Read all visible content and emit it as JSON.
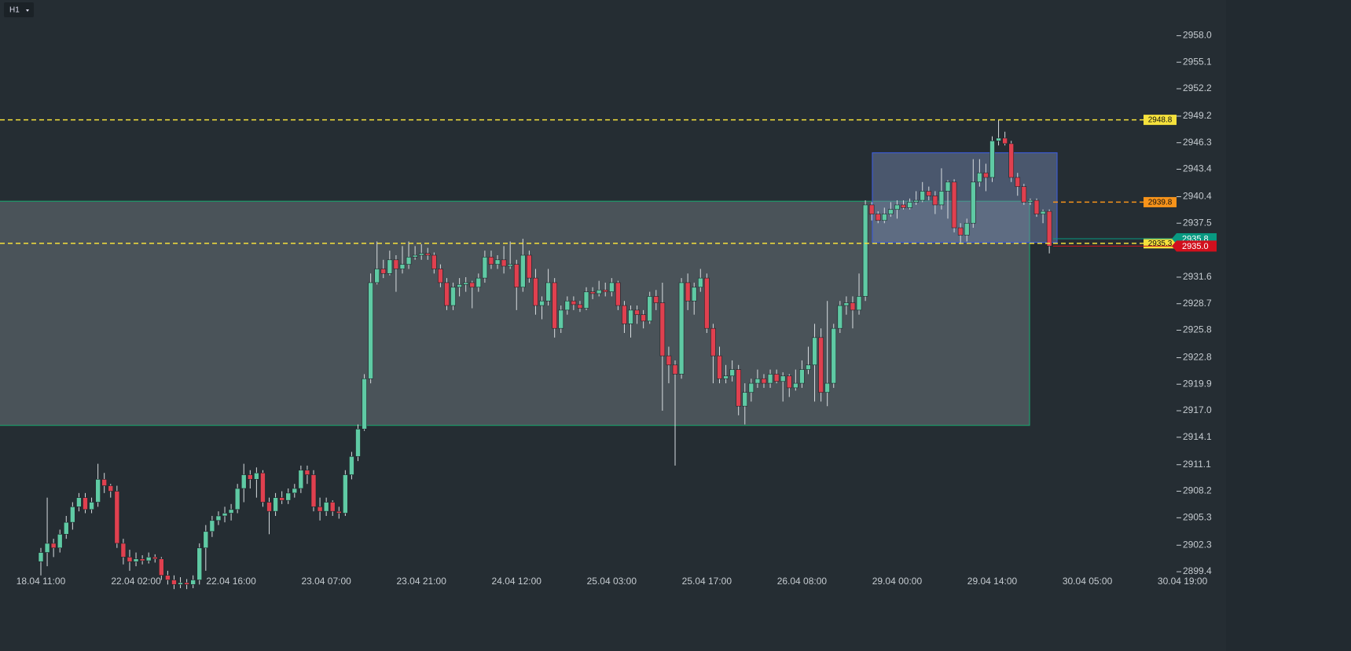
{
  "chart_data": {
    "type": "candlestick",
    "timeframe": "H1",
    "ylim": [
      2897.3,
      2961.9
    ],
    "yticks": [
      {
        "value": 2958.0,
        "label": "2958.0"
      },
      {
        "value": 2955.1,
        "label": "2955.1"
      },
      {
        "value": 2952.2,
        "label": "2952.2"
      },
      {
        "value": 2949.2,
        "label": "2949.2"
      },
      {
        "value": 2946.3,
        "label": "2946.3"
      },
      {
        "value": 2943.4,
        "label": "2943.4"
      },
      {
        "value": 2940.4,
        "label": "2940.4"
      },
      {
        "value": 2937.5,
        "label": "2937.5"
      },
      {
        "value": 2931.6,
        "label": "2931.6"
      },
      {
        "value": 2928.7,
        "label": "2928.7"
      },
      {
        "value": 2925.8,
        "label": "2925.8"
      },
      {
        "value": 2922.8,
        "label": "2922.8"
      },
      {
        "value": 2919.9,
        "label": "2919.9"
      },
      {
        "value": 2917.0,
        "label": "2917.0"
      },
      {
        "value": 2914.1,
        "label": "2914.1"
      },
      {
        "value": 2911.1,
        "label": "2911.1"
      },
      {
        "value": 2908.2,
        "label": "2908.2"
      },
      {
        "value": 2905.3,
        "label": "2905.3"
      },
      {
        "value": 2902.3,
        "label": "2902.3"
      },
      {
        "value": 2899.4,
        "label": "2899.4"
      }
    ],
    "xticks": [
      "18.04 11:00",
      "22.04 02:00",
      "22.04 16:00",
      "23.04 07:00",
      "23.04 21:00",
      "24.04 12:00",
      "25.04 03:00",
      "25.04 17:00",
      "26.04 08:00",
      "29.04 00:00",
      "29.04 14:00",
      "30.04 05:00",
      "30.04 19:00"
    ],
    "up_color": "#5fcaa4",
    "down_color": "#e0404f",
    "zones": [
      {
        "top": 2939.9,
        "bottom": 2915.4,
        "fill": "rgba(120,130,135,0.45)",
        "stroke": "#1f9a6a"
      },
      {
        "top": 2945.2,
        "bottom": 2935.4,
        "fill": "rgba(120,140,180,0.45)",
        "stroke": "#3d5bd0"
      }
    ],
    "levels": [
      {
        "price": 2948.8,
        "color": "#f5e13c",
        "dashed": true
      },
      {
        "price": 2939.8,
        "color": "#f7931a",
        "dashed": true
      },
      {
        "price": 2935.3,
        "color": "#f5e13c",
        "dashed": true
      },
      {
        "price": 2935.8,
        "color": "#089981",
        "dashed": false
      },
      {
        "price": {
          "value": 2935,
          "label": "2935.0"
        },
        "color": "#d1101d",
        "dashed": false
      }
    ],
    "candles": [
      [
        2900.5,
        2902.0,
        2899.0,
        2901.5
      ],
      [
        2901.5,
        2907.5,
        2900.0,
        2902.5
      ],
      [
        2902.5,
        2903.0,
        2901.0,
        2902.0
      ],
      [
        2902.0,
        2904.0,
        2901.5,
        2903.5
      ],
      [
        2903.5,
        2905.5,
        2903.0,
        2904.8
      ],
      [
        2904.8,
        2907.0,
        2904.0,
        2906.5
      ],
      [
        2906.5,
        2908.0,
        2906.0,
        2907.5
      ],
      [
        2907.5,
        2908.0,
        2905.8,
        2906.2
      ],
      [
        2906.2,
        2907.5,
        2905.8,
        2907.0
      ],
      [
        2907.0,
        2911.2,
        2906.5,
        2909.5
      ],
      [
        2909.5,
        2910.2,
        2908.0,
        2908.8
      ],
      [
        2908.8,
        2909.0,
        2907.5,
        2908.2
      ],
      [
        2908.2,
        2908.8,
        2902.0,
        2902.5
      ],
      [
        2902.5,
        2903.0,
        2900.2,
        2901.0
      ],
      [
        2901.0,
        2901.8,
        2899.5,
        2900.5
      ],
      [
        2900.5,
        2901.5,
        2900.0,
        2900.8
      ],
      [
        2900.8,
        2901.2,
        2900.2,
        2900.6
      ],
      [
        2900.6,
        2901.5,
        2900.3,
        2901.0
      ],
      [
        2901.0,
        2901.3,
        2900.4,
        2900.8
      ],
      [
        2900.8,
        2901.0,
        2898.5,
        2899.0
      ],
      [
        2899.0,
        2899.5,
        2898.0,
        2898.5
      ],
      [
        2898.5,
        2899.0,
        2897.5,
        2898.0
      ],
      [
        2898.0,
        2898.8,
        2897.6,
        2898.2
      ],
      [
        2898.2,
        2898.6,
        2897.5,
        2898.0
      ],
      [
        2898.0,
        2899.0,
        2897.6,
        2898.5
      ],
      [
        2898.5,
        2902.5,
        2898.0,
        2902.0
      ],
      [
        2902.0,
        2904.5,
        2899.5,
        2903.8
      ],
      [
        2903.8,
        2905.5,
        2903.2,
        2905.0
      ],
      [
        2905.0,
        2906.0,
        2904.5,
        2905.5
      ],
      [
        2905.5,
        2906.5,
        2904.8,
        2905.8
      ],
      [
        2905.8,
        2906.8,
        2905.0,
        2906.2
      ],
      [
        2906.2,
        2909.0,
        2905.8,
        2908.5
      ],
      [
        2908.5,
        2911.2,
        2907.0,
        2910.0
      ],
      [
        2910.0,
        2910.5,
        2908.5,
        2909.5
      ],
      [
        2909.5,
        2910.8,
        2907.5,
        2910.2
      ],
      [
        2910.2,
        2910.5,
        2906.5,
        2907.0
      ],
      [
        2907.0,
        2907.5,
        2903.5,
        2906.0
      ],
      [
        2906.0,
        2908.0,
        2905.5,
        2907.5
      ],
      [
        2907.5,
        2908.2,
        2906.8,
        2907.2
      ],
      [
        2907.2,
        2908.5,
        2906.8,
        2908.0
      ],
      [
        2908.0,
        2909.0,
        2907.5,
        2908.5
      ],
      [
        2908.5,
        2911.0,
        2908.0,
        2910.5
      ],
      [
        2910.5,
        2911.0,
        2909.0,
        2910.0
      ],
      [
        2910.0,
        2910.5,
        2906.0,
        2906.5
      ],
      [
        2906.5,
        2907.5,
        2905.0,
        2906.0
      ],
      [
        2906.0,
        2907.5,
        2905.5,
        2907.0
      ],
      [
        2907.0,
        2907.2,
        2905.5,
        2906.0
      ],
      [
        2906.0,
        2906.5,
        2905.2,
        2905.8
      ],
      [
        2905.8,
        2910.5,
        2905.5,
        2910.0
      ],
      [
        2910.0,
        2912.5,
        2909.5,
        2912.0
      ],
      [
        2912.0,
        2915.5,
        2911.5,
        2915.0
      ],
      [
        2915.0,
        2921.0,
        2914.8,
        2920.5
      ],
      [
        2920.5,
        2932.0,
        2920.0,
        2931.0
      ],
      [
        2931.0,
        2935.5,
        2930.8,
        2932.5
      ],
      [
        2932.5,
        2933.5,
        2931.5,
        2932.0
      ],
      [
        2932.0,
        2934.5,
        2931.8,
        2933.5
      ],
      [
        2933.5,
        2934.0,
        2930.0,
        2932.5
      ],
      [
        2932.5,
        2935.0,
        2932.0,
        2933.0
      ],
      [
        2933.0,
        2935.5,
        2932.5,
        2933.8
      ],
      [
        2933.8,
        2935.0,
        2933.5,
        2934.0
      ],
      [
        2934.0,
        2935.2,
        2933.5,
        2934.2
      ],
      [
        2934.2,
        2934.8,
        2933.5,
        2934.0
      ],
      [
        2934.0,
        2934.3,
        2932.0,
        2932.5
      ],
      [
        2932.5,
        2933.0,
        2930.5,
        2931.0
      ],
      [
        2931.0,
        2931.5,
        2928.0,
        2928.5
      ],
      [
        2928.5,
        2931.0,
        2928.0,
        2930.5
      ],
      [
        2930.5,
        2931.5,
        2929.5,
        2930.8
      ],
      [
        2930.8,
        2931.6,
        2930.0,
        2931.0
      ],
      [
        2931.0,
        2931.2,
        2928.2,
        2930.5
      ],
      [
        2930.5,
        2932.0,
        2930.0,
        2931.5
      ],
      [
        2931.5,
        2934.5,
        2931.0,
        2933.8
      ],
      [
        2933.8,
        2934.5,
        2932.5,
        2933.0
      ],
      [
        2933.0,
        2934.0,
        2932.5,
        2933.5
      ],
      [
        2933.5,
        2935.0,
        2932.0,
        2932.8
      ],
      [
        2932.8,
        2935.5,
        2932.5,
        2933.0
      ],
      [
        2933.0,
        2933.5,
        2928.0,
        2930.5
      ],
      [
        2930.5,
        2935.8,
        2930.0,
        2934.0
      ],
      [
        2934.0,
        2934.5,
        2931.0,
        2931.5
      ],
      [
        2931.5,
        2932.5,
        2927.5,
        2928.5
      ],
      [
        2928.5,
        2929.5,
        2927.0,
        2929.0
      ],
      [
        2929.0,
        2932.5,
        2928.5,
        2931.0
      ],
      [
        2931.0,
        2931.5,
        2925.0,
        2926.0
      ],
      [
        2926.0,
        2928.5,
        2925.5,
        2928.0
      ],
      [
        2928.0,
        2929.5,
        2927.5,
        2929.0
      ],
      [
        2929.0,
        2929.5,
        2928.0,
        2928.6
      ],
      [
        2928.6,
        2929.0,
        2927.8,
        2928.2
      ],
      [
        2928.2,
        2930.5,
        2928.0,
        2930.0
      ],
      [
        2930.0,
        2930.5,
        2929.2,
        2929.8
      ],
      [
        2929.8,
        2931.2,
        2929.5,
        2930.2
      ],
      [
        2930.2,
        2931.0,
        2929.5,
        2930.0
      ],
      [
        2930.0,
        2931.5,
        2929.5,
        2931.0
      ],
      [
        2931.0,
        2931.2,
        2928.0,
        2928.5
      ],
      [
        2928.5,
        2929.0,
        2925.5,
        2926.5
      ],
      [
        2926.5,
        2928.5,
        2925.0,
        2928.0
      ],
      [
        2928.0,
        2928.5,
        2926.5,
        2927.5
      ],
      [
        2927.5,
        2928.0,
        2926.0,
        2926.8
      ],
      [
        2926.8,
        2930.0,
        2926.5,
        2929.5
      ],
      [
        2929.5,
        2930.2,
        2928.0,
        2928.8
      ],
      [
        2928.8,
        2931.0,
        2917.0,
        2923.0
      ],
      [
        2923.0,
        2924.0,
        2920.0,
        2922.0
      ],
      [
        2922.0,
        2922.5,
        2911.0,
        2921.0
      ],
      [
        2921.0,
        2931.5,
        2920.5,
        2931.0
      ],
      [
        2931.0,
        2932.0,
        2928.0,
        2929.0
      ],
      [
        2929.0,
        2931.0,
        2927.5,
        2930.5
      ],
      [
        2930.5,
        2932.5,
        2930.0,
        2931.5
      ],
      [
        2931.5,
        2932.0,
        2925.5,
        2926.0
      ],
      [
        2926.0,
        2926.5,
        2920.0,
        2923.0
      ],
      [
        2923.0,
        2924.0,
        2920.0,
        2920.5
      ],
      [
        2920.5,
        2922.0,
        2920.0,
        2920.8
      ],
      [
        2920.8,
        2922.5,
        2920.2,
        2921.5
      ],
      [
        2921.5,
        2922.0,
        2916.5,
        2917.5
      ],
      [
        2917.5,
        2920.0,
        2915.5,
        2919.0
      ],
      [
        2919.0,
        2920.5,
        2918.0,
        2920.0
      ],
      [
        2920.0,
        2921.5,
        2919.5,
        2920.5
      ],
      [
        2920.5,
        2921.0,
        2919.5,
        2920.0
      ],
      [
        2920.0,
        2921.5,
        2919.5,
        2921.0
      ],
      [
        2921.0,
        2921.5,
        2920.0,
        2920.2
      ],
      [
        2920.2,
        2921.2,
        2918.0,
        2920.8
      ],
      [
        2920.8,
        2921.0,
        2918.5,
        2919.5
      ],
      [
        2919.5,
        2921.5,
        2919.2,
        2920.0
      ],
      [
        2920.0,
        2922.5,
        2919.5,
        2921.5
      ],
      [
        2921.5,
        2924.0,
        2921.0,
        2922.0
      ],
      [
        2922.0,
        2926.5,
        2918.0,
        2925.0
      ],
      [
        2925.0,
        2926.0,
        2918.0,
        2919.0
      ],
      [
        2919.0,
        2929.0,
        2917.5,
        2920.0
      ],
      [
        2920.0,
        2926.5,
        2919.5,
        2926.0
      ],
      [
        2926.0,
        2929.0,
        2925.5,
        2928.5
      ],
      [
        2928.5,
        2929.5,
        2927.5,
        2928.8
      ],
      [
        2928.8,
        2929.5,
        2926.0,
        2928.0
      ],
      [
        2928.0,
        2932.0,
        2927.5,
        2929.5
      ],
      [
        2929.5,
        2940.0,
        2929.0,
        2939.5
      ],
      [
        2939.5,
        2939.8,
        2937.8,
        2938.5
      ],
      [
        2938.5,
        2938.8,
        2937.5,
        2937.8
      ],
      [
        2937.8,
        2939.2,
        2937.5,
        2938.5
      ],
      [
        2938.5,
        2939.8,
        2938.2,
        2939.0
      ],
      [
        2939.0,
        2940.0,
        2938.0,
        2939.5
      ],
      [
        2939.5,
        2940.0,
        2939.0,
        2939.2
      ],
      [
        2939.2,
        2940.2,
        2939.0,
        2939.8
      ],
      [
        2939.8,
        2941.0,
        2939.5,
        2940.0
      ],
      [
        2940.0,
        2942.0,
        2939.8,
        2941.0
      ],
      [
        2941.0,
        2941.5,
        2940.0,
        2940.5
      ],
      [
        2940.5,
        2941.0,
        2938.5,
        2939.5
      ],
      [
        2939.5,
        2943.5,
        2939.0,
        2941.0
      ],
      [
        2941.0,
        2942.2,
        2938.0,
        2942.0
      ],
      [
        2942.0,
        2942.3,
        2936.5,
        2937.0
      ],
      [
        2937.0,
        2937.5,
        2935.2,
        2936.2
      ],
      [
        2936.2,
        2938.0,
        2935.5,
        2937.5
      ],
      [
        2937.5,
        2944.5,
        2937.0,
        2942.0
      ],
      [
        2942.0,
        2944.5,
        2941.5,
        2943.0
      ],
      [
        2943.0,
        2944.0,
        2941.0,
        2942.5
      ],
      [
        2942.5,
        2947.0,
        2942.0,
        2946.5
      ],
      [
        2946.5,
        2948.8,
        2946.0,
        2946.8
      ],
      [
        2946.8,
        2947.5,
        2946.0,
        2946.2
      ],
      [
        2946.2,
        2946.5,
        2942.0,
        2942.5
      ],
      [
        2942.5,
        2943.0,
        2940.5,
        2941.5
      ],
      [
        2941.5,
        2941.8,
        2939.5,
        2939.8
      ],
      [
        2939.8,
        2940.2,
        2939.5,
        2940.0
      ],
      [
        2940.0,
        2940.2,
        2938.2,
        2938.5
      ],
      [
        2938.5,
        2939.0,
        2937.5,
        2938.8
      ],
      [
        2938.8,
        2939.0,
        2934.2,
        2935.0
      ]
    ]
  }
}
